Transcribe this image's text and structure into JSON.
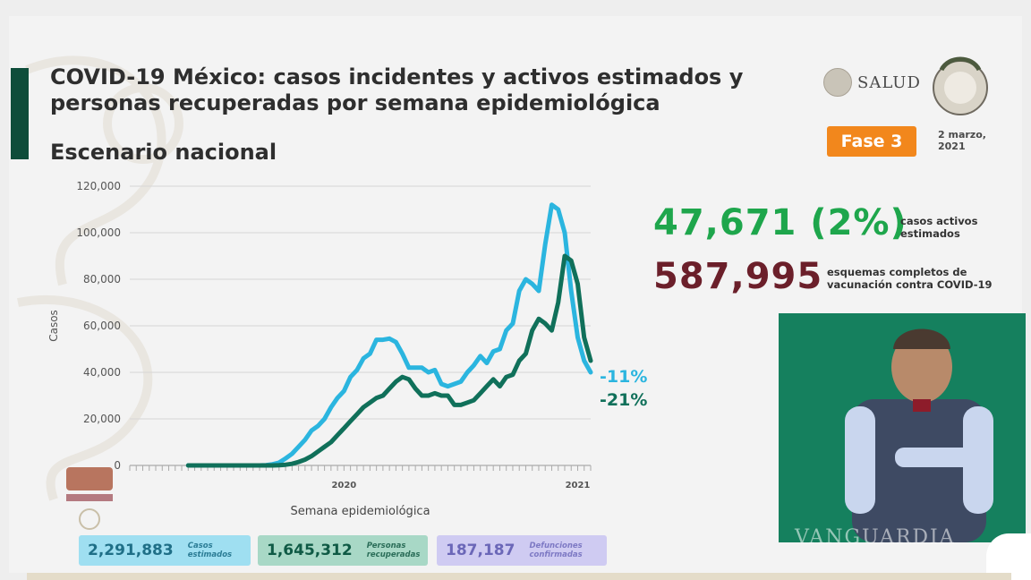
{
  "header": {
    "title": "COVID-19 México: casos incidentes y activos estimados y personas recuperadas por semana epidemiológica",
    "subtitle": "Escenario nacional"
  },
  "logos": {
    "salud": "SALUD"
  },
  "badge": {
    "fase": "Fase 3"
  },
  "date": "2 marzo, 2021",
  "stats": {
    "active_value": "47,671 (2%)",
    "active_label": "casos activos estimados",
    "vacc_value": "587,995",
    "vacc_label": "esquemas completos de vacunación contra COVID-19"
  },
  "bottom": {
    "estimated_value": "2,291,883",
    "estimated_label": "Casos estimados",
    "recovered_value": "1,645,312",
    "recovered_label": "Personas recuperadas",
    "deaths_value": "187,187",
    "deaths_label": "Defunciones confirmadas"
  },
  "watermark": "VANGUARDIA",
  "colors": {
    "light_series": "#2bb5df",
    "dark_series": "#10705a",
    "accent": "#f2871c"
  },
  "chart_data": {
    "type": "line",
    "xlabel": "Semana epidemiológica",
    "ylabel": "Casos",
    "ylim": [
      0,
      120000
    ],
    "yticks": [
      0,
      20000,
      40000,
      60000,
      80000,
      100000,
      120000
    ],
    "ytick_labels": [
      "0",
      "20,000",
      "40,000",
      "60,000",
      "80,000",
      "100,000",
      "120,000"
    ],
    "x_labels": [
      {
        "week": 33,
        "label": "2020"
      },
      {
        "week": 69,
        "label": "2021"
      }
    ],
    "x_count": 72,
    "series": [
      {
        "color": "#2bb5df",
        "end_label": "-11%",
        "values": [
          0,
          0,
          0,
          0,
          0,
          0,
          0,
          0,
          0,
          0,
          0,
          0,
          100,
          500,
          1200,
          3000,
          5000,
          8000,
          11000,
          15000,
          17000,
          20000,
          25000,
          29000,
          32000,
          38000,
          41000,
          46000,
          48000,
          54000,
          54000,
          54500,
          53000,
          48000,
          42000,
          42000,
          42000,
          40000,
          41000,
          35000,
          34000,
          35000,
          36000,
          40000,
          43000,
          47000,
          44000,
          49000,
          50000,
          58000,
          61000,
          75000,
          80000,
          78000,
          75000,
          95000,
          112000,
          110000,
          100000,
          75000,
          55000,
          45000,
          40000
        ]
      },
      {
        "color": "#10705a",
        "end_label": "-21%",
        "values": [
          0,
          0,
          0,
          0,
          0,
          0,
          0,
          0,
          0,
          0,
          0,
          0,
          0,
          0,
          100,
          300,
          700,
          1500,
          2500,
          4000,
          6000,
          8000,
          10000,
          13000,
          16000,
          19000,
          22000,
          25000,
          27000,
          29000,
          30000,
          33000,
          36000,
          38000,
          37000,
          33000,
          30000,
          30000,
          31000,
          30000,
          30000,
          26000,
          26000,
          27000,
          28000,
          31000,
          34000,
          37000,
          34000,
          38000,
          39000,
          45000,
          48000,
          58000,
          63000,
          61000,
          58000,
          70000,
          90000,
          88000,
          78000,
          55000,
          45000
        ]
      }
    ]
  }
}
